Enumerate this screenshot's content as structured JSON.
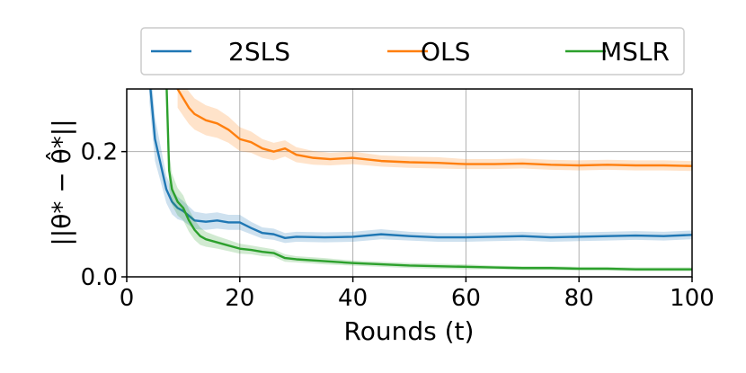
{
  "chart_data": {
    "type": "line",
    "xlabel": "Rounds (t)",
    "ylabel": "||θ* − θ̂*||",
    "xlim": [
      0,
      100
    ],
    "ylim": [
      0,
      0.3
    ],
    "xticks": [
      0,
      20,
      40,
      60,
      80,
      100
    ],
    "yticks": [
      0.0,
      0.2
    ],
    "xtick_labels": [
      "0",
      "20",
      "40",
      "60",
      "80",
      "100"
    ],
    "ytick_labels": [
      "0.0",
      "0.2"
    ],
    "grid": true,
    "legend_position": "top-center, above plot",
    "series": [
      {
        "name": "2SLS",
        "color": "#1f77b4",
        "x": [
          4,
          5,
          6,
          7,
          8,
          9,
          10,
          12,
          14,
          16,
          18,
          20,
          22,
          24,
          26,
          28,
          30,
          35,
          40,
          45,
          50,
          55,
          60,
          65,
          70,
          75,
          80,
          85,
          90,
          95,
          100
        ],
        "values": [
          0.32,
          0.22,
          0.18,
          0.14,
          0.12,
          0.11,
          0.105,
          0.09,
          0.088,
          0.09,
          0.087,
          0.087,
          0.078,
          0.07,
          0.068,
          0.062,
          0.064,
          0.063,
          0.064,
          0.068,
          0.065,
          0.063,
          0.063,
          0.064,
          0.065,
          0.063,
          0.064,
          0.065,
          0.066,
          0.065,
          0.067
        ],
        "band": [
          0.04,
          0.035,
          0.028,
          0.022,
          0.02,
          0.018,
          0.016,
          0.014,
          0.013,
          0.013,
          0.012,
          0.012,
          0.01,
          0.009,
          0.009,
          0.008,
          0.008,
          0.008,
          0.008,
          0.008,
          0.007,
          0.007,
          0.007,
          0.007,
          0.007,
          0.007,
          0.007,
          0.007,
          0.007,
          0.007,
          0.007
        ]
      },
      {
        "name": "OLS",
        "color": "#ff7f0e",
        "x": [
          9,
          10,
          11,
          12,
          14,
          16,
          18,
          20,
          22,
          24,
          26,
          28,
          30,
          33,
          36,
          40,
          45,
          50,
          55,
          60,
          65,
          70,
          75,
          80,
          85,
          90,
          95,
          100
        ],
        "values": [
          0.3,
          0.285,
          0.27,
          0.26,
          0.25,
          0.245,
          0.235,
          0.22,
          0.215,
          0.205,
          0.2,
          0.205,
          0.195,
          0.19,
          0.188,
          0.19,
          0.185,
          0.183,
          0.182,
          0.18,
          0.18,
          0.181,
          0.179,
          0.178,
          0.179,
          0.178,
          0.178,
          0.177
        ],
        "band": [
          0.03,
          0.028,
          0.026,
          0.025,
          0.024,
          0.023,
          0.021,
          0.019,
          0.017,
          0.015,
          0.014,
          0.013,
          0.012,
          0.011,
          0.01,
          0.01,
          0.009,
          0.009,
          0.009,
          0.008,
          0.008,
          0.008,
          0.008,
          0.008,
          0.008,
          0.008,
          0.008,
          0.008
        ]
      },
      {
        "name": "MSLR",
        "color": "#2ca02c",
        "x": [
          7,
          7.5,
          8,
          9,
          10,
          11,
          12,
          13,
          14,
          16,
          18,
          20,
          22,
          24,
          26,
          28,
          30,
          35,
          40,
          45,
          50,
          55,
          60,
          65,
          70,
          75,
          80,
          85,
          90,
          95,
          100
        ],
        "values": [
          0.32,
          0.17,
          0.14,
          0.12,
          0.11,
          0.09,
          0.075,
          0.065,
          0.06,
          0.055,
          0.05,
          0.045,
          0.043,
          0.04,
          0.038,
          0.03,
          0.028,
          0.025,
          0.022,
          0.02,
          0.018,
          0.017,
          0.016,
          0.015,
          0.014,
          0.014,
          0.013,
          0.013,
          0.012,
          0.012,
          0.012
        ],
        "band": [
          0.05,
          0.03,
          0.025,
          0.022,
          0.02,
          0.018,
          0.016,
          0.014,
          0.012,
          0.01,
          0.009,
          0.008,
          0.007,
          0.007,
          0.006,
          0.006,
          0.005,
          0.005,
          0.004,
          0.004,
          0.004,
          0.004,
          0.004,
          0.003,
          0.003,
          0.003,
          0.003,
          0.003,
          0.003,
          0.003,
          0.003
        ]
      }
    ]
  }
}
